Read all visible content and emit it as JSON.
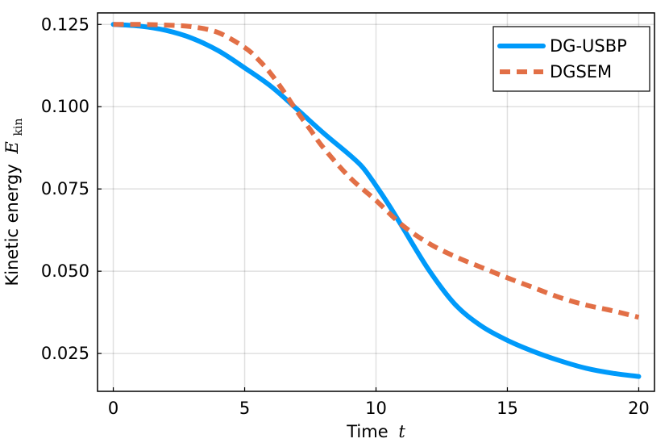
{
  "chart_data": {
    "type": "line",
    "title": "",
    "xlabel": "Time",
    "xlabel_var": "t",
    "ylabel": "Kinetic energy",
    "ylabel_var": "E",
    "ylabel_sub": "kin",
    "xlim": [
      -0.6,
      20.6
    ],
    "ylim": [
      0.0135,
      0.1285
    ],
    "xticks": [
      0,
      5,
      10,
      15,
      20
    ],
    "xtick_labels": [
      "0",
      "5",
      "10",
      "15",
      "20"
    ],
    "yticks": [
      0.025,
      0.05,
      0.075,
      0.1,
      0.125
    ],
    "ytick_labels": [
      "0.025",
      "0.050",
      "0.075",
      "0.100",
      "0.125"
    ],
    "grid": true,
    "legend_position": "top-right",
    "series": [
      {
        "name": "DG-USBP",
        "color": "#009AFA",
        "dash": "solid",
        "x": [
          0,
          1,
          2,
          3,
          4,
          5,
          6,
          7,
          8,
          9,
          9.5,
          10,
          10.5,
          11,
          12,
          13,
          14,
          15,
          16,
          17,
          18,
          19,
          20
        ],
        "y": [
          0.125,
          0.1245,
          0.1232,
          0.1208,
          0.117,
          0.1118,
          0.1062,
          0.0992,
          0.092,
          0.0853,
          0.0815,
          0.076,
          0.07,
          0.0635,
          0.0505,
          0.04,
          0.0334,
          0.029,
          0.0256,
          0.0228,
          0.0205,
          0.019,
          0.018
        ]
      },
      {
        "name": "DGSEM",
        "color": "#E26F46",
        "dash": "dashed",
        "x": [
          0,
          1,
          2,
          3,
          4,
          5,
          5.5,
          6,
          6.5,
          7,
          7.5,
          8,
          9,
          10,
          11,
          12,
          13,
          14,
          15,
          16,
          17,
          18,
          19,
          20
        ],
        "y": [
          0.125,
          0.125,
          0.1248,
          0.1243,
          0.1225,
          0.118,
          0.1145,
          0.11,
          0.1045,
          0.0985,
          0.093,
          0.0875,
          0.0785,
          0.0715,
          0.064,
          0.0585,
          0.0545,
          0.0512,
          0.048,
          0.045,
          0.042,
          0.0397,
          0.038,
          0.036
        ]
      }
    ]
  }
}
